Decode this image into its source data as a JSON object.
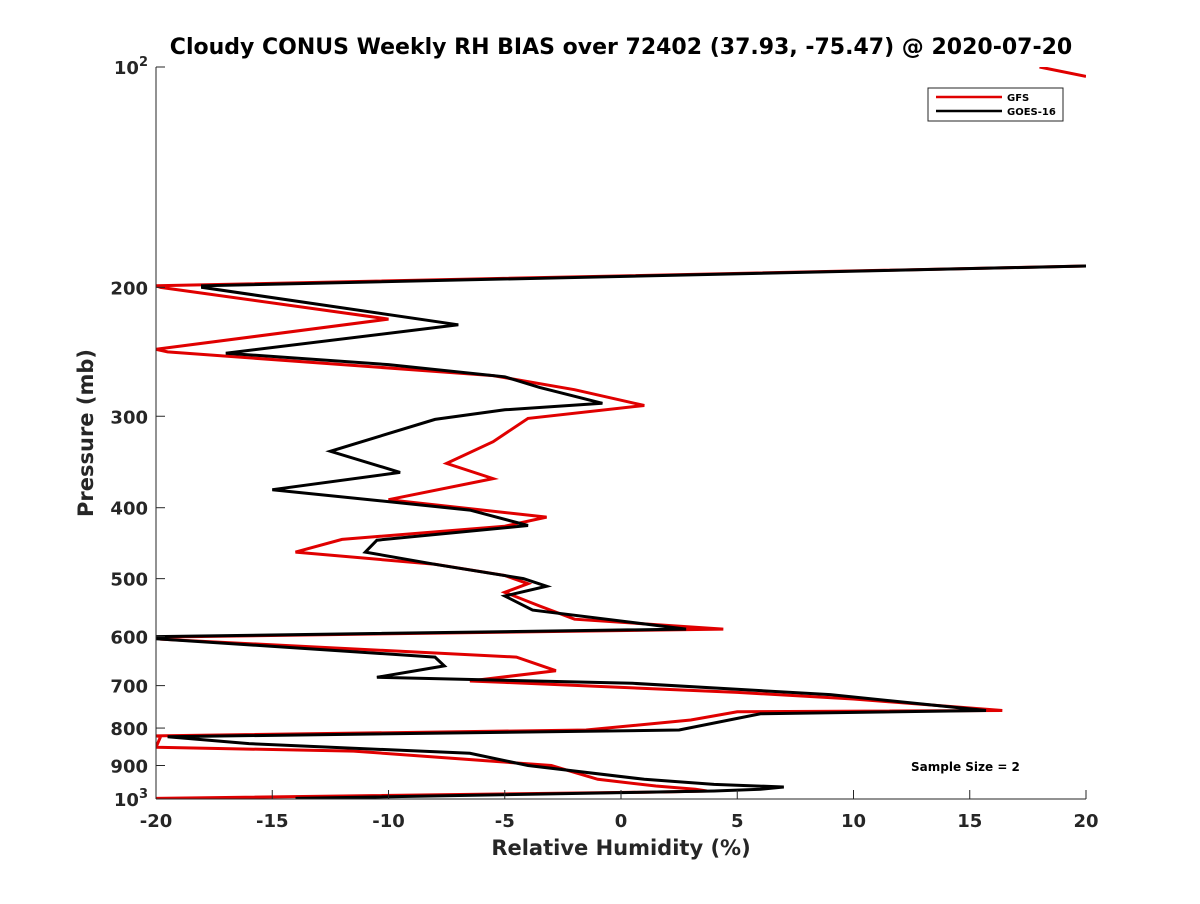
{
  "chart_data": {
    "type": "line",
    "title": "Cloudy CONUS Weekly RH BIAS over 72402 (37.93, -75.47) @ 2020-07-20",
    "xlabel": "Relative Humidity (%)",
    "ylabel": "Pressure (mb)",
    "xlim": [
      -20,
      20
    ],
    "ylim": [
      100,
      1000
    ],
    "y_scale": "log",
    "y_reversed": true,
    "grid": false,
    "legend_position": "top-right",
    "x_ticks": [
      "-20",
      "-15",
      "-10",
      "-5",
      "0",
      "5",
      "10",
      "15",
      "20"
    ],
    "y_ticks": [
      {
        "value": 100,
        "base": "10",
        "exp": "2"
      },
      {
        "value": 200,
        "label": "200"
      },
      {
        "value": 300,
        "label": "300"
      },
      {
        "value": 400,
        "label": "400"
      },
      {
        "value": 500,
        "label": "500"
      },
      {
        "value": 600,
        "label": "600"
      },
      {
        "value": 700,
        "label": "700"
      },
      {
        "value": 800,
        "label": "800"
      },
      {
        "value": 900,
        "label": "900"
      },
      {
        "value": 1000,
        "base": "10",
        "exp": "3"
      }
    ],
    "annotation": "Sample Size = 2",
    "series": [
      {
        "name": "GFS",
        "color": "#e00000",
        "points": [
          [
            18,
            100
          ],
          [
            20,
            103
          ],
          [
            null,
            null
          ],
          [
            20,
            187
          ],
          [
            -20,
            199
          ],
          [
            -19.8,
            200
          ],
          [
            -10,
            221
          ],
          [
            -20,
            243
          ],
          [
            -19.5,
            245
          ],
          [
            -5.5,
            264
          ],
          [
            -2,
            276
          ],
          [
            1,
            290
          ],
          [
            -4,
            302
          ],
          [
            -5.5,
            325
          ],
          [
            -7.5,
            348
          ],
          [
            -5.5,
            365
          ],
          [
            -10,
            390
          ],
          [
            -3.2,
            412
          ],
          [
            -5,
            424
          ],
          [
            -12,
            442
          ],
          [
            -14,
            460
          ],
          [
            -8,
            478
          ],
          [
            -5,
            495
          ],
          [
            -4,
            508
          ],
          [
            -5,
            522
          ],
          [
            -3.5,
            545
          ],
          [
            -2,
            568
          ],
          [
            4.4,
            586
          ],
          [
            -20,
            601
          ],
          [
            -19.8,
            605
          ],
          [
            -4.5,
            640
          ],
          [
            -2.8,
            668
          ],
          [
            -6.5,
            690
          ],
          [
            -5,
            693
          ],
          [
            5,
            715
          ],
          [
            10,
            730
          ],
          [
            16.4,
            757
          ],
          [
            5,
            760
          ],
          [
            3,
            780
          ],
          [
            -1.5,
            805
          ],
          [
            -20,
            820
          ],
          [
            -19.8,
            822
          ],
          [
            -20,
            850
          ],
          [
            -11.5,
            860
          ],
          [
            -3,
            900
          ],
          [
            -1,
            940
          ],
          [
            1.5,
            960
          ],
          [
            3.2,
            970
          ],
          [
            3.7,
            975
          ],
          [
            2,
            978
          ],
          [
            -20,
            998
          ]
        ]
      },
      {
        "name": "GOES-16",
        "color": "#000000",
        "points": [
          [
            20,
            187
          ],
          [
            -18,
            199
          ],
          [
            -18,
            200
          ],
          [
            -7,
            225
          ],
          [
            -17,
            246
          ],
          [
            -10,
            255
          ],
          [
            -5,
            265
          ],
          [
            -3.5,
            274
          ],
          [
            -0.8,
            288
          ],
          [
            -5,
            294
          ],
          [
            -8,
            303
          ],
          [
            -12.5,
            335
          ],
          [
            -9.5,
            358
          ],
          [
            -15,
            378
          ],
          [
            -6.5,
            403
          ],
          [
            -4,
            423
          ],
          [
            -10.5,
            443
          ],
          [
            -11,
            460
          ],
          [
            -8,
            478
          ],
          [
            -4.2,
            500
          ],
          [
            -3.2,
            512
          ],
          [
            -5,
            528
          ],
          [
            -3.8,
            552
          ],
          [
            2.8,
            586
          ],
          [
            -20,
            600
          ],
          [
            -20,
            604
          ],
          [
            -8,
            640
          ],
          [
            -7.6,
            658
          ],
          [
            -10.5,
            682
          ],
          [
            0.5,
            695
          ],
          [
            9,
            720
          ],
          [
            15.7,
            757
          ],
          [
            6,
            765
          ],
          [
            2.5,
            805
          ],
          [
            -19.5,
            822
          ],
          [
            -16,
            840
          ],
          [
            -6.5,
            866
          ],
          [
            -4,
            900
          ],
          [
            1,
            940
          ],
          [
            4,
            955
          ],
          [
            7,
            963
          ],
          [
            6,
            970
          ],
          [
            4,
            975
          ],
          [
            -14,
            998
          ]
        ]
      }
    ]
  }
}
